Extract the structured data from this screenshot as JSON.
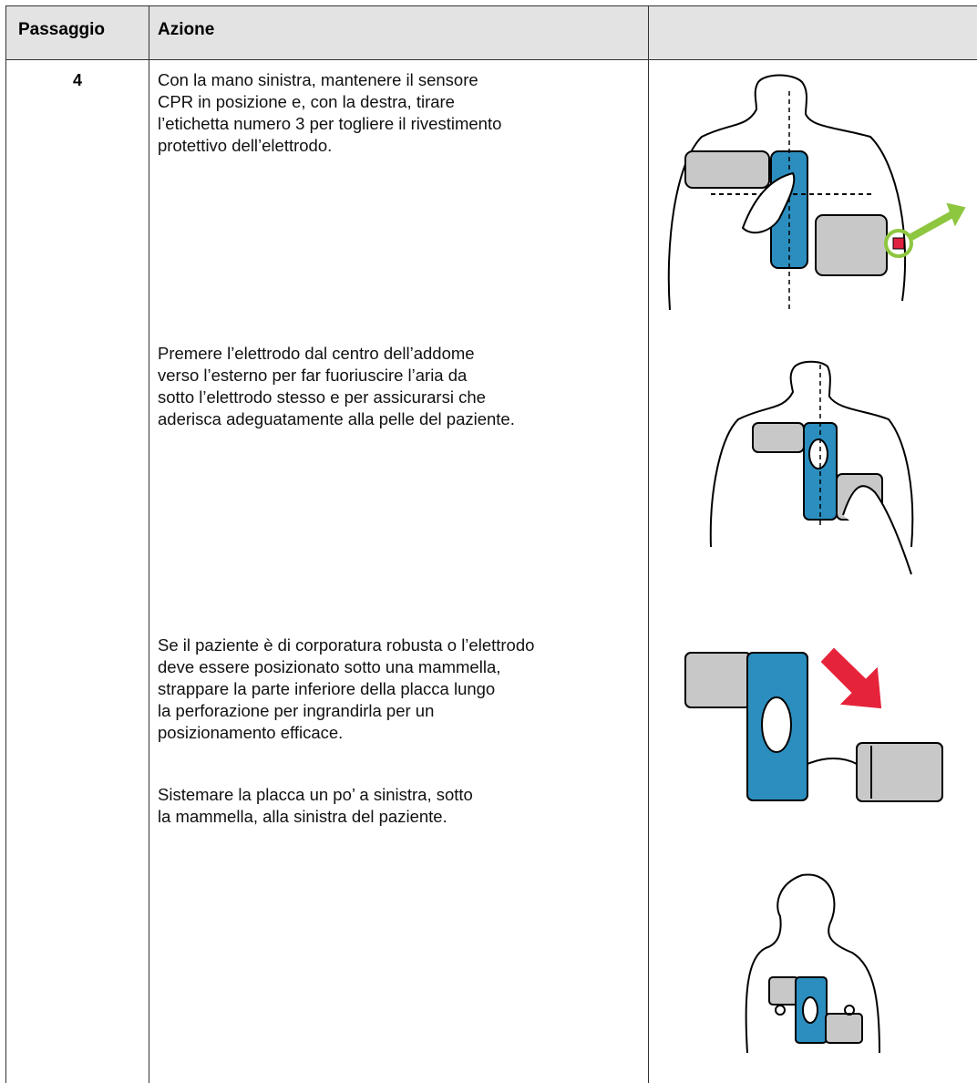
{
  "table": {
    "header": [
      "Passaggio",
      "Azione"
    ],
    "rows": [
      {
        "step": "4",
        "paragraphs": [
          [
            "Con la mano sinistra, mantenere il sensore",
            "CPR in posizione e, con la destra, tirare",
            "l’etichetta numero 3 per togliere il rivestimento",
            "protettivo dell’elettrodo."
          ],
          [
            "Premere l’elettrodo dal centro dell’addome",
            "verso l’esterno per far fuoriuscire l’aria da",
            "sotto l’elettrodo stesso e per assicurarsi che",
            "aderisca adeguatamente alla pelle del paziente."
          ],
          [
            "Se il paziente è di corporatura robusta o l’elettrodo",
            "deve essere posizionato sotto una mammella,",
            "strappare la parte inferiore della placca lungo",
            "la perforazione per ingrandirla per un",
            "posizionamento efficace."
          ],
          [
            "Sistemare la placca un po’ a sinistra, sotto",
            "la mammella, alla sinistra del paziente."
          ]
        ]
      }
    ]
  }
}
